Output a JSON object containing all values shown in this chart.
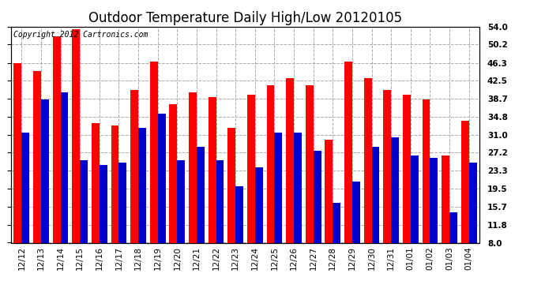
{
  "title": "Outdoor Temperature Daily High/Low 20120105",
  "copyright": "Copyright 2012 Cartronics.com",
  "dates": [
    "12/12",
    "12/13",
    "12/14",
    "12/15",
    "12/16",
    "12/17",
    "12/18",
    "12/19",
    "12/20",
    "12/21",
    "12/22",
    "12/23",
    "12/24",
    "12/25",
    "12/26",
    "12/27",
    "12/28",
    "12/29",
    "12/30",
    "12/31",
    "01/01",
    "01/02",
    "01/03",
    "01/04"
  ],
  "highs": [
    46.3,
    44.5,
    52.0,
    53.5,
    33.5,
    33.0,
    40.5,
    46.5,
    37.5,
    40.0,
    39.0,
    32.5,
    39.5,
    41.5,
    43.0,
    41.5,
    30.0,
    46.5,
    43.0,
    40.5,
    39.5,
    38.5,
    26.5,
    34.0
  ],
  "lows": [
    31.5,
    38.5,
    40.0,
    25.5,
    24.5,
    25.0,
    32.5,
    35.5,
    25.5,
    28.5,
    25.5,
    20.0,
    24.0,
    31.5,
    31.5,
    27.5,
    16.5,
    21.0,
    28.5,
    30.5,
    26.5,
    26.0,
    14.5,
    25.0
  ],
  "high_color": "#ff0000",
  "low_color": "#0000cc",
  "bg_color": "#ffffff",
  "plot_bg_color": "#ffffff",
  "grid_color": "#aaaaaa",
  "ylim": [
    8.0,
    54.0
  ],
  "ybase": 8.0,
  "yticks": [
    8.0,
    11.8,
    15.7,
    19.5,
    23.3,
    27.2,
    31.0,
    34.8,
    38.7,
    42.5,
    46.3,
    50.2,
    54.0
  ],
  "title_fontsize": 12,
  "copyright_fontsize": 7,
  "tick_fontsize": 7.5,
  "bar_width": 0.4,
  "figsize": [
    6.9,
    3.75
  ],
  "dpi": 100
}
